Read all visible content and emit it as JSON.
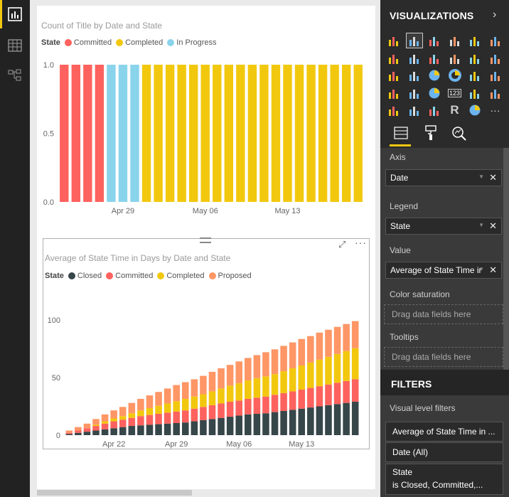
{
  "leftnav": {
    "items": [
      {
        "name": "report-view-icon",
        "active": true
      },
      {
        "name": "data-view-icon",
        "active": false
      },
      {
        "name": "relationships-view-icon",
        "active": false
      }
    ]
  },
  "visual1": {
    "title": "Count of Title by Date and State",
    "legend_title": "State",
    "legend": [
      {
        "label": "Committed",
        "color": "#fd625e"
      },
      {
        "label": "Completed",
        "color": "#f2c80f"
      },
      {
        "label": "In Progress",
        "color": "#8ad4eb"
      }
    ]
  },
  "visual2": {
    "title": "Average of State Time in Days by Date and State",
    "legend_title": "State",
    "legend": [
      {
        "label": "Closed",
        "color": "#374649"
      },
      {
        "label": "Committed",
        "color": "#fd625e"
      },
      {
        "label": "Completed",
        "color": "#f2c80f"
      },
      {
        "label": "Proposed",
        "color": "#fe9666"
      }
    ]
  },
  "chart_data": [
    {
      "type": "bar",
      "title": "Count of Title by Date and State",
      "xlabel": "",
      "ylabel": "",
      "ylim": [
        0,
        1
      ],
      "yticks": [
        "0.0",
        "0.5",
        "1.0"
      ],
      "xtick_labels": [
        {
          "label": "Apr 29",
          "index": 5
        },
        {
          "label": "May 06",
          "index": 12
        },
        {
          "label": "May 13",
          "index": 19
        }
      ],
      "series": [
        {
          "name": "Committed",
          "color": "#fd625e",
          "values": [
            1,
            1,
            1,
            1,
            0,
            0,
            0,
            0,
            0,
            0,
            0,
            0,
            0,
            0,
            0,
            0,
            0,
            0,
            0,
            0,
            0,
            0,
            0,
            0,
            0,
            0
          ]
        },
        {
          "name": "In Progress",
          "color": "#8ad4eb",
          "values": [
            0,
            0,
            0,
            0,
            1,
            1,
            1,
            0,
            0,
            0,
            0,
            0,
            0,
            0,
            0,
            0,
            0,
            0,
            0,
            0,
            0,
            0,
            0,
            0,
            0,
            0
          ]
        },
        {
          "name": "Completed",
          "color": "#f2c80f",
          "values": [
            0,
            0,
            0,
            0,
            0,
            0,
            0,
            1,
            1,
            1,
            1,
            1,
            1,
            1,
            1,
            1,
            1,
            1,
            1,
            1,
            1,
            1,
            1,
            1,
            1,
            1
          ]
        }
      ],
      "grid": false,
      "legend_position": "top-left"
    },
    {
      "type": "bar",
      "stacked": true,
      "title": "Average of State Time in Days by Date and State",
      "xlabel": "",
      "ylabel": "",
      "ylim": [
        0,
        100
      ],
      "yticks": [
        "0",
        "50",
        "100"
      ],
      "xtick_labels": [
        {
          "label": "Apr 22",
          "index": 5
        },
        {
          "label": "Apr 29",
          "index": 12
        },
        {
          "label": "May 06",
          "index": 19
        },
        {
          "label": "May 13",
          "index": 26
        }
      ],
      "series": [
        {
          "name": "Closed",
          "color": "#374649",
          "values": [
            1,
            2,
            3,
            4,
            5,
            6,
            7,
            8,
            8.5,
            9,
            9.5,
            10,
            10.5,
            11,
            12,
            13,
            14,
            15,
            16,
            17,
            18,
            18.5,
            19,
            20,
            21,
            22,
            23,
            24,
            25,
            26,
            27,
            28,
            29
          ]
        },
        {
          "name": "Committed",
          "color": "#fd625e",
          "values": [
            1,
            2,
            3,
            4,
            5,
            6,
            6.5,
            7,
            8,
            8.5,
            9,
            9.5,
            10,
            10.5,
            11,
            11.5,
            12,
            12.5,
            13,
            13,
            13.5,
            14,
            14.5,
            15,
            15.5,
            16,
            16.5,
            17,
            17.5,
            18,
            18.5,
            19,
            19.5
          ]
        },
        {
          "name": "Completed",
          "color": "#f2c80f",
          "values": [
            0,
            0,
            0,
            1,
            2,
            2.5,
            3,
            4,
            5,
            6,
            7,
            8,
            9,
            10,
            10.5,
            11,
            12,
            13,
            14,
            15,
            16,
            17,
            17.5,
            18,
            19,
            20,
            21,
            22,
            23,
            24,
            25,
            26,
            27
          ]
        },
        {
          "name": "Proposed",
          "color": "#fe9666",
          "values": [
            2,
            3,
            4,
            5,
            6,
            7,
            8,
            9,
            10,
            11,
            12,
            13,
            14,
            14.5,
            15,
            16,
            17,
            17.5,
            18,
            19,
            19.5,
            20,
            21,
            21.5,
            22,
            22.5,
            23,
            23,
            23.5,
            23.5,
            23.5,
            23.5,
            23.5
          ]
        }
      ],
      "grid": false,
      "legend_position": "top-left"
    }
  ],
  "viz_pane": {
    "title": "VISUALIZATIONS",
    "icons": [
      "stacked-bar-icon",
      "stacked-column-icon",
      "clustered-bar-icon",
      "clustered-column-icon",
      "100-percent-bar-icon",
      "100-percent-column-icon",
      "line-chart-icon",
      "area-chart-icon",
      "stacked-area-icon",
      "line-column-icon",
      "line-clustered-column-icon",
      "ribbon-chart-icon",
      "waterfall-icon",
      "scatter-icon",
      "pie-icon",
      "donut-icon",
      "treemap-icon",
      "map-icon",
      "filled-map-icon",
      "funnel-icon",
      "gauge-icon",
      "card-icon",
      "multirow-card-icon",
      "kpi-icon",
      "slicer-icon",
      "table-icon",
      "matrix-icon",
      "r-script-icon",
      "globe-icon",
      "more-icon"
    ],
    "selected_icon_index": 1,
    "tabs": [
      "fields-tab-icon",
      "format-tab-icon",
      "analytics-tab-icon"
    ]
  },
  "wells": {
    "axis_label": "Axis",
    "axis_value": "Date",
    "legend_label": "Legend",
    "legend_value": "State",
    "value_label": "Value",
    "value_value": "Average of State Time in Days",
    "color_label": "Color saturation",
    "color_placeholder": "Drag data fields here",
    "tooltips_label": "Tooltips",
    "tooltips_placeholder": "Drag data fields here"
  },
  "filters": {
    "title": "FILTERS",
    "level_label": "Visual level filters",
    "items": [
      {
        "line1": "Average of State Time in ...",
        "line2": ""
      },
      {
        "line1": "Date (All)",
        "line2": ""
      },
      {
        "line1": "State",
        "line2": "is Closed, Committed,..."
      }
    ]
  }
}
